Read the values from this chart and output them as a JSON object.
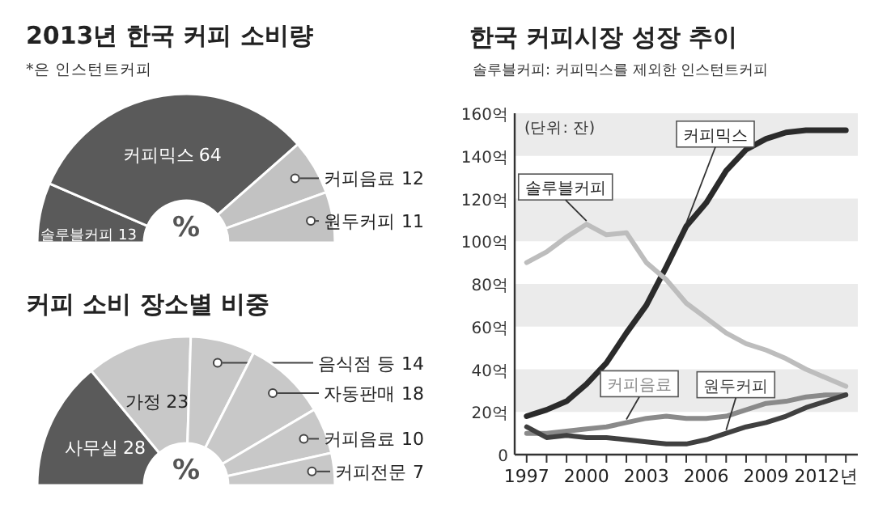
{
  "chart_data": [
    {
      "type": "donut",
      "title": "2013년 한국 커피 소비량",
      "subtitle": "*은 인스턴트커피",
      "categories": [
        "솔루블커피",
        "커피믹스",
        "커피음료",
        "원두커피"
      ],
      "values": [
        13,
        64,
        12,
        11
      ],
      "colors": [
        "#5a5a5a",
        "#5a5a5a",
        "#c2c2c2",
        "#c2c2c2"
      ],
      "data_labels": true,
      "annotations": [
        "%"
      ]
    },
    {
      "type": "donut",
      "title": "커피 소비 장소별 비중",
      "categories": [
        "사무실",
        "가정",
        "음식점 등",
        "자동판매",
        "커피음료",
        "커피전문"
      ],
      "values": [
        28,
        23,
        14,
        18,
        10,
        7
      ],
      "colors": [
        "#5a5a5a",
        "#c8c8c8",
        "#c8c8c8",
        "#c8c8c8",
        "#c8c8c8",
        "#c8c8c8"
      ],
      "data_labels": true,
      "annotations": [
        "%"
      ]
    },
    {
      "type": "line",
      "title": "한국 커피시장 성장 추이",
      "subtitle": "솔루블커피: 커피믹스를 제외한 인스턴트커피",
      "annotations": [
        "(단위: 잔)"
      ],
      "x": [
        1997,
        1998,
        1999,
        2000,
        2001,
        2002,
        2003,
        2004,
        2005,
        2006,
        2007,
        2008,
        2009,
        2010,
        2011,
        2012,
        2013
      ],
      "xlim": [
        1996.4,
        2013.6
      ],
      "xticks": [
        1997,
        {
          "value": 1998,
          "label": null
        },
        {
          "value": 1999,
          "label": null
        },
        2000,
        {
          "value": 2001,
          "label": null
        },
        {
          "value": 2002,
          "label": null
        },
        2003,
        {
          "value": 2004,
          "label": null
        },
        {
          "value": 2005,
          "label": null
        },
        2006,
        {
          "value": 2007,
          "label": null
        },
        {
          "value": 2008,
          "label": null
        },
        2009,
        {
          "value": 2010,
          "label": null
        },
        {
          "value": 2011,
          "label": null
        },
        {
          "value": 2012,
          "label": "2012년"
        },
        {
          "value": 2013,
          "label": null
        }
      ],
      "ylim": [
        0,
        160
      ],
      "yticks": [
        0,
        {
          "value": 20,
          "label": "20억"
        },
        {
          "value": 40,
          "label": "40억"
        },
        {
          "value": 60,
          "label": "60억"
        },
        {
          "value": 80,
          "label": "80억"
        },
        {
          "value": 100,
          "label": "100억"
        },
        {
          "value": 120,
          "label": "120억"
        },
        {
          "value": 140,
          "label": "140억"
        },
        {
          "value": 160,
          "label": "160억"
        }
      ],
      "bands": [
        {
          "axis": "y",
          "from": 20,
          "to": 40,
          "color": "#ebebeb"
        },
        {
          "axis": "y",
          "from": 60,
          "to": 80,
          "color": "#ebebeb"
        },
        {
          "axis": "y",
          "from": 100,
          "to": 120,
          "color": "#ebebeb"
        },
        {
          "axis": "y",
          "from": 140,
          "to": 160,
          "color": "#ebebeb"
        }
      ],
      "series": [
        {
          "name": "커피믹스",
          "color": "#2b2b2b",
          "values": [
            18,
            21,
            25,
            33,
            43,
            57,
            70,
            88,
            107,
            118,
            133,
            143,
            148,
            151,
            152,
            152,
            152
          ]
        },
        {
          "name": "솔루블커피",
          "color": "#bdbdbd",
          "values": [
            90,
            95,
            102,
            108,
            103,
            104,
            90,
            82,
            71,
            64,
            57,
            52,
            49,
            45,
            40,
            36,
            32
          ]
        },
        {
          "name": "커피음료",
          "color": "#8a8a8a",
          "values": [
            10,
            10,
            11,
            12,
            13,
            15,
            17,
            18,
            17,
            17,
            18,
            21,
            24,
            25,
            27,
            28,
            28
          ]
        },
        {
          "name": "원두커피",
          "color": "#404040",
          "values": [
            13,
            8,
            9,
            8,
            8,
            7,
            6,
            5,
            5,
            7,
            10,
            13,
            15,
            18,
            22,
            25,
            28
          ]
        }
      ]
    }
  ]
}
